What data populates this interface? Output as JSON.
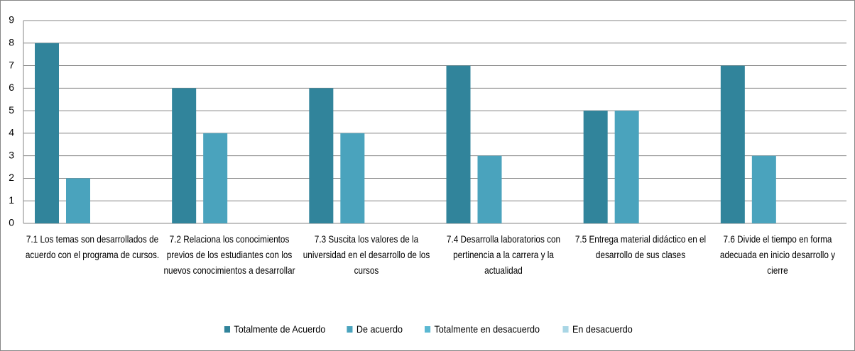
{
  "chart_data": {
    "type": "bar",
    "categories": [
      "7.1 Los temas son desarrollados de acuerdo con el programa de cursos.",
      "7.2 Relaciona los conocimientos previos de los estudiantes con los nuevos conocimientos a desarrollar",
      "7.3 Suscita los valores de la universidad en el desarrollo de los cursos",
      "7.4 Desarrolla laboratorios con pertinencia a la carrera y la actualidad",
      "7.5 Entrega material didáctico en el desarrollo de sus clases",
      "7.6 Divide el tiempo en forma adecuada en inicio desarrollo y cierre"
    ],
    "series": [
      {
        "name": "Totalmente de Acuerdo",
        "color": "#31849b",
        "values": [
          8,
          6,
          6,
          7,
          5,
          7
        ]
      },
      {
        "name": "De acuerdo",
        "color": "#4aa3bd",
        "values": [
          2,
          4,
          4,
          3,
          5,
          3
        ]
      },
      {
        "name": "Totalmente en desacuerdo",
        "color": "#5bb8d2",
        "values": [
          0,
          0,
          0,
          0,
          0,
          0
        ]
      },
      {
        "name": "En desacuerdo",
        "color": "#a9d6e5",
        "values": [
          0,
          0,
          0,
          0,
          0,
          0
        ]
      }
    ],
    "ylim": [
      0,
      9
    ],
    "yticks": [
      0,
      1,
      2,
      3,
      4,
      5,
      6,
      7,
      8,
      9
    ],
    "grid": true,
    "legend": "bottom"
  }
}
